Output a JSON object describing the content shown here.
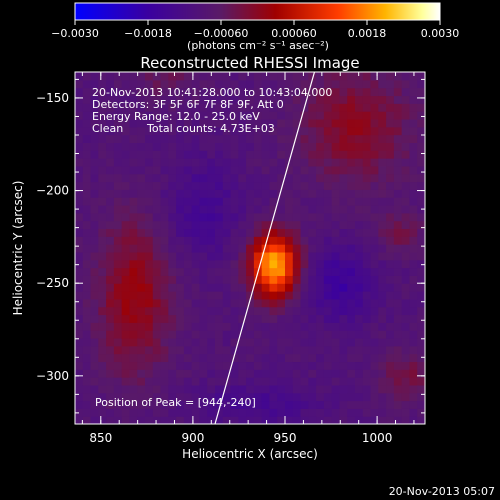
{
  "chart_data": {
    "type": "heatmap",
    "title": "Reconstructed RHESSI Image",
    "xlabel": "Heliocentric X (arcsec)",
    "ylabel": "Heliocentric Y (arcsec)",
    "xlim": [
      836,
      1026
    ],
    "ylim": [
      -326,
      -136
    ],
    "x_ticks": [
      850,
      900,
      950,
      1000
    ],
    "y_ticks": [
      -150,
      -200,
      -250,
      -300
    ],
    "x_tick_labels": [
      "850",
      "900",
      "950",
      "1000"
    ],
    "y_tick_labels": [
      "−150",
      "−200",
      "−250",
      "−300"
    ],
    "colorbar": {
      "min": -0.003,
      "max": 0.003,
      "tick_values": [
        -0.003,
        -0.0018,
        -0.0006,
        0.0006,
        0.0018,
        0.003
      ],
      "tick_labels": [
        "−0.0030",
        "−0.0018",
        "−0.00060",
        "0.00060",
        "0.0018",
        "0.0030"
      ],
      "unit_label": "(photons cm⁻² s⁻¹ asec⁻²)",
      "colormap": [
        "#0000ff",
        "#3a00a0",
        "#5a1a66",
        "#a00000",
        "#ff3c00",
        "#ffb400",
        "#ffff99",
        "#ffffff"
      ]
    },
    "annotations": {
      "time_range": "20-Nov-2013 10:41:28.000 to 10:43:04.000",
      "detectors": "Detectors: 3F 5F 6F 7F 8F 9F, Att 0",
      "energy": "Energy Range: 12.0 - 25.0 keV",
      "method": "Clean",
      "counts": "Total counts: 4.73E+03",
      "peak": "Position of Peak = [944,-240]"
    },
    "sources": [
      {
        "name": "peak",
        "x": 944,
        "y": -240,
        "sx": 9,
        "sy": 12,
        "amp": 0.003
      },
      {
        "name": "left-lobe",
        "x": 868,
        "y": -258,
        "sx": 14,
        "sy": 30,
        "amp": 0.0011
      },
      {
        "name": "upper-right",
        "x": 988,
        "y": -165,
        "sx": 22,
        "sy": 22,
        "amp": 0.0009
      },
      {
        "name": "mid-right",
        "x": 1012,
        "y": -222,
        "sx": 10,
        "sy": 8,
        "amp": 0.00055
      },
      {
        "name": "lower-right",
        "x": 1016,
        "y": -300,
        "sx": 12,
        "sy": 10,
        "amp": 0.0006
      },
      {
        "name": "top-left",
        "x": 885,
        "y": -140,
        "sx": 14,
        "sy": 8,
        "amp": 0.0004
      },
      {
        "name": "dip-right",
        "x": 980,
        "y": -250,
        "sx": 12,
        "sy": 14,
        "amp": -0.0008
      },
      {
        "name": "dip-left",
        "x": 905,
        "y": -210,
        "sx": 14,
        "sy": 18,
        "amp": -0.0006
      },
      {
        "name": "dip-bottom",
        "x": 935,
        "y": -315,
        "sx": 25,
        "sy": 8,
        "amp": -0.0005
      }
    ],
    "limb_line": {
      "x": [
        912,
        966
      ],
      "y": [
        -326,
        -136
      ]
    }
  },
  "footer_timestamp": "20-Nov-2013 05:07"
}
